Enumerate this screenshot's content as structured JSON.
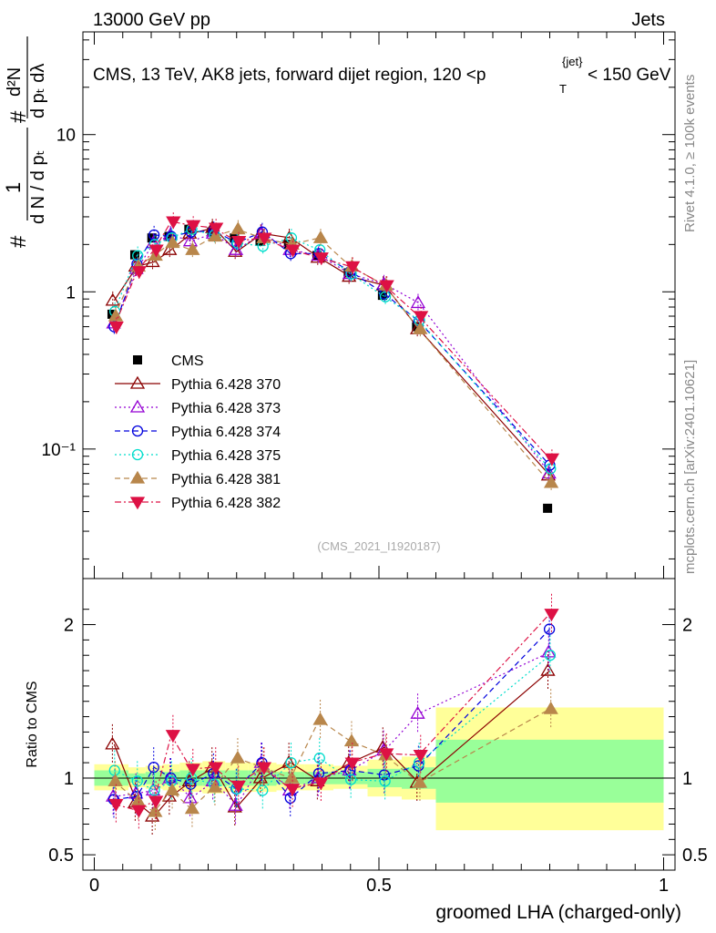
{
  "header": {
    "left": "13000 GeV pp",
    "right": "Jets"
  },
  "side": {
    "rivet": "Rivet 4.1.0, ≥ 100k events",
    "mcplots": "mcplots.cern.ch [arXiv:2401.10621]"
  },
  "chart_data": [
    {
      "type": "line",
      "panel": "main",
      "title": "CMS, 13 TeV, AK8 jets, forward dijet region, 120 <p_T^{jet}< 150 GeV",
      "title_main": "CMS, 13 TeV, AK8 jets, forward dijet region, 120 <p",
      "title_sub": "T",
      "title_sup": "{jet}",
      "title_tail": "< 150 GeV",
      "ylabel_num": "d²N",
      "ylabel_den": "d pₜ dλ",
      "ylabel_left": "#",
      "ylabel_frac_num": "1",
      "ylabel_frac_den": "d N / d pₜ",
      "ylabel_text": "# 1/(dN/dp_T) # d²N/(dp_T dλ)",
      "yscale": "log",
      "ylim": [
        0.015,
        45
      ],
      "xlim": [
        -0.02,
        1.02
      ],
      "yticks": [
        {
          "value": 0.1,
          "label": "10⁻¹"
        },
        {
          "value": 1,
          "label": "1"
        },
        {
          "value": 10,
          "label": "10"
        }
      ],
      "watermark": "(CMS_2021_I1920187)",
      "legend_position": "center-left",
      "x": [
        0.035,
        0.075,
        0.105,
        0.135,
        0.17,
        0.21,
        0.25,
        0.295,
        0.345,
        0.395,
        0.45,
        0.51,
        0.57,
        0.8
      ],
      "series": [
        {
          "name": "CMS",
          "color": "#000000",
          "marker": "square",
          "line": "none",
          "values": [
            0.72,
            1.72,
            2.2,
            2.25,
            2.5,
            2.4,
            2.2,
            2.1,
            2.0,
            1.7,
            1.32,
            0.95,
            0.6,
            0.042
          ]
        },
        {
          "name": "Pythia 6.428 370",
          "color": "#8b0000",
          "marker": "triangle-open",
          "line": "solid",
          "values": [
            0.88,
            1.45,
            1.55,
            1.85,
            2.35,
            2.55,
            1.8,
            2.35,
            2.2,
            1.65,
            1.25,
            1.1,
            0.58,
            0.068
          ]
        },
        {
          "name": "Pythia 6.428 373",
          "color": "#9400d3",
          "marker": "triangle-open",
          "line": "dotted",
          "values": [
            0.63,
            1.4,
            2.05,
            2.3,
            2.1,
            2.35,
            1.85,
            2.35,
            1.85,
            1.7,
            1.3,
            1.12,
            0.85,
            0.07
          ]
        },
        {
          "name": "Pythia 6.428 374",
          "color": "#0000dd",
          "marker": "circle-open",
          "line": "dashed",
          "values": [
            0.6,
            1.5,
            2.3,
            2.25,
            2.4,
            2.45,
            2.05,
            2.4,
            1.75,
            1.75,
            1.35,
            0.97,
            0.65,
            0.079
          ]
        },
        {
          "name": "Pythia 6.428 375",
          "color": "#00ddcc",
          "marker": "circle-open",
          "line": "dotted",
          "values": [
            0.75,
            1.7,
            2.0,
            2.2,
            2.5,
            2.3,
            2.05,
            1.95,
            2.2,
            1.85,
            1.3,
            0.93,
            0.66,
            0.075
          ]
        },
        {
          "name": "Pythia 6.428 381",
          "color": "#b8864b",
          "marker": "triangle-filled",
          "line": "dashed",
          "values": [
            0.7,
            1.45,
            1.7,
            2.05,
            1.85,
            2.25,
            2.5,
            2.2,
            2.0,
            2.2,
            1.45,
            1.1,
            0.58,
            0.061
          ]
        },
        {
          "name": "Pythia 6.428 382",
          "color": "#dd1144",
          "marker": "triangle-down-filled",
          "line": "dashdot",
          "values": [
            0.6,
            1.35,
            1.85,
            2.8,
            2.65,
            2.55,
            2.1,
            2.2,
            1.85,
            1.65,
            1.45,
            1.1,
            0.7,
            0.087
          ]
        }
      ]
    },
    {
      "type": "line",
      "panel": "ratio",
      "ylabel": "Ratio to CMS",
      "xlabel": "groomed LHA (charged-only)",
      "ylim": [
        0.4,
        2.3
      ],
      "xlim": [
        -0.02,
        1.02
      ],
      "yticks": [
        {
          "value": 0.5,
          "label": "0.5"
        },
        {
          "value": 1,
          "label": "1"
        },
        {
          "value": 2,
          "label": "2"
        }
      ],
      "xticks": [
        {
          "value": 0,
          "label": "0"
        },
        {
          "value": 0.5,
          "label": "0.5"
        },
        {
          "value": 1,
          "label": "1"
        }
      ],
      "bands": [
        {
          "x0": 0.0,
          "x1": 0.06,
          "yellow": [
            0.92,
            1.09
          ],
          "green": [
            0.95,
            1.05
          ]
        },
        {
          "x0": 0.06,
          "x1": 0.09,
          "yellow": [
            0.94,
            1.07
          ],
          "green": [
            0.97,
            1.03
          ]
        },
        {
          "x0": 0.09,
          "x1": 0.12,
          "yellow": [
            0.93,
            1.08
          ],
          "green": [
            0.96,
            1.04
          ]
        },
        {
          "x0": 0.12,
          "x1": 0.15,
          "yellow": [
            0.92,
            1.09
          ],
          "green": [
            0.96,
            1.04
          ]
        },
        {
          "x0": 0.15,
          "x1": 0.19,
          "yellow": [
            0.91,
            1.1
          ],
          "green": [
            0.95,
            1.05
          ]
        },
        {
          "x0": 0.19,
          "x1": 0.23,
          "yellow": [
            0.9,
            1.11
          ],
          "green": [
            0.95,
            1.05
          ]
        },
        {
          "x0": 0.23,
          "x1": 0.27,
          "yellow": [
            0.91,
            1.1
          ],
          "green": [
            0.95,
            1.05
          ]
        },
        {
          "x0": 0.27,
          "x1": 0.32,
          "yellow": [
            0.91,
            1.1
          ],
          "green": [
            0.95,
            1.05
          ]
        },
        {
          "x0": 0.32,
          "x1": 0.37,
          "yellow": [
            0.92,
            1.09
          ],
          "green": [
            0.96,
            1.04
          ]
        },
        {
          "x0": 0.37,
          "x1": 0.42,
          "yellow": [
            0.92,
            1.09
          ],
          "green": [
            0.96,
            1.04
          ]
        },
        {
          "x0": 0.42,
          "x1": 0.48,
          "yellow": [
            0.93,
            1.08
          ],
          "green": [
            0.96,
            1.04
          ]
        },
        {
          "x0": 0.48,
          "x1": 0.54,
          "yellow": [
            0.88,
            1.12
          ],
          "green": [
            0.94,
            1.06
          ]
        },
        {
          "x0": 0.54,
          "x1": 0.6,
          "yellow": [
            0.86,
            1.14
          ],
          "green": [
            0.93,
            1.07
          ]
        },
        {
          "x0": 0.6,
          "x1": 1.0,
          "yellow": [
            0.66,
            1.46
          ],
          "green": [
            0.84,
            1.25
          ]
        }
      ],
      "series": [
        {
          "name": "Pythia 6.428 370",
          "values": [
            1.22,
            0.84,
            0.75,
            0.88,
            0.98,
            1.07,
            0.81,
            1.0,
            1.1,
            0.98,
            1.1,
            1.2,
            0.97,
            1.7
          ]
        },
        {
          "name": "Pythia 6.428 373",
          "values": [
            0.88,
            0.9,
            0.92,
            1.0,
            0.87,
            0.98,
            0.82,
            1.1,
            0.92,
            1.0,
            1.05,
            1.18,
            1.42,
            1.82
          ]
        },
        {
          "name": "Pythia 6.428 374",
          "values": [
            0.86,
            0.88,
            1.07,
            1.0,
            0.96,
            1.03,
            0.93,
            1.1,
            0.87,
            1.03,
            1.05,
            1.02,
            1.08,
            1.97
          ]
        },
        {
          "name": "Pythia 6.428 375",
          "values": [
            1.05,
            0.98,
            0.92,
            0.98,
            1.0,
            0.96,
            0.93,
            0.92,
            1.1,
            1.13,
            0.99,
            0.98,
            1.1,
            1.8
          ]
        },
        {
          "name": "Pythia 6.428 381",
          "values": [
            0.98,
            0.85,
            0.78,
            0.92,
            0.8,
            0.94,
            1.13,
            1.07,
            1.0,
            1.38,
            1.24,
            1.15,
            0.97,
            1.45
          ]
        },
        {
          "name": "Pythia 6.428 382",
          "values": [
            0.83,
            0.79,
            0.85,
            1.28,
            1.06,
            1.07,
            0.95,
            1.07,
            0.93,
            0.97,
            1.1,
            1.16,
            1.15,
            2.07
          ]
        }
      ]
    }
  ]
}
